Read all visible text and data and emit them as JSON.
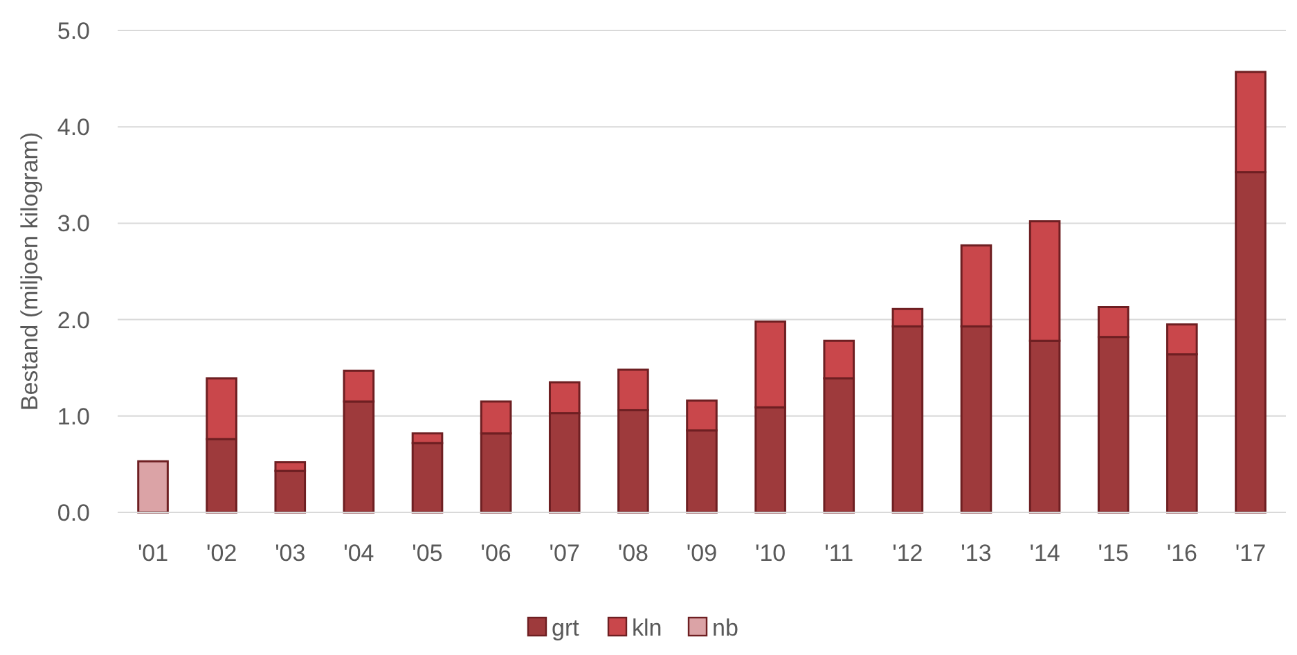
{
  "chart_data": {
    "type": "bar",
    "stacked": true,
    "ylabel": "Bestand (miljoen kilogram)",
    "categories": [
      "'01",
      "'02",
      "'03",
      "'04",
      "'05",
      "'06",
      "'07",
      "'08",
      "'09",
      "'10",
      "'11",
      "'12",
      "'13",
      "'14",
      "'15",
      "'16",
      "'17"
    ],
    "series": [
      {
        "name": "grt",
        "color": "#9e3a3c",
        "values": [
          null,
          0.76,
          0.43,
          1.15,
          0.72,
          0.82,
          1.03,
          1.06,
          0.85,
          1.09,
          1.39,
          1.93,
          1.93,
          1.78,
          1.82,
          1.64,
          3.53
        ]
      },
      {
        "name": "kln",
        "color": "#c9474b",
        "values": [
          null,
          0.63,
          0.09,
          0.32,
          0.1,
          0.33,
          0.32,
          0.42,
          0.31,
          0.89,
          0.39,
          0.18,
          0.84,
          1.24,
          0.31,
          0.31,
          1.04
        ]
      },
      {
        "name": "nb",
        "color": "#dba3a6",
        "values": [
          0.53,
          null,
          null,
          null,
          null,
          null,
          null,
          null,
          null,
          null,
          null,
          null,
          null,
          null,
          null,
          null,
          null
        ]
      }
    ],
    "ylim": [
      0,
      5
    ],
    "yticks": [
      {
        "value": 0,
        "label": "0.0"
      },
      {
        "value": 1,
        "label": "1.0"
      },
      {
        "value": 2,
        "label": "2.0"
      },
      {
        "value": 3,
        "label": "3.0"
      },
      {
        "value": 4,
        "label": "4.0"
      },
      {
        "value": 5,
        "label": "5.0"
      }
    ],
    "grid": "y",
    "legend": "bottom"
  }
}
